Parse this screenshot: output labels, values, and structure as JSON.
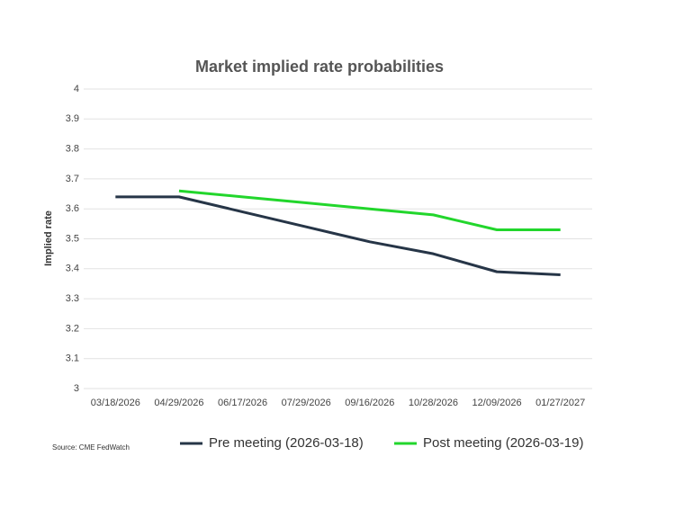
{
  "chart_data": {
    "type": "line",
    "title": "Market implied rate probabilities",
    "y_label": "Implied rate",
    "source": "Source: CME FedWatch",
    "categories": [
      "03/18/2026",
      "04/29/2026",
      "06/17/2026",
      "07/29/2026",
      "09/16/2026",
      "10/28/2026",
      "12/09/2026",
      "01/27/2027"
    ],
    "series": [
      {
        "name": "Pre meeting (2026-03-18)",
        "color": "#263547",
        "values": [
          3.64,
          3.64,
          3.59,
          3.54,
          3.49,
          3.45,
          3.39,
          3.38
        ]
      },
      {
        "name": "Post meeting (2026-03-19)",
        "color": "#22d62c",
        "values": [
          null,
          3.66,
          3.64,
          3.62,
          3.6,
          3.58,
          3.53,
          3.53
        ]
      }
    ],
    "ylim": [
      3,
      4
    ],
    "yticks": [
      3,
      3.1,
      3.2,
      3.3,
      3.4,
      3.5,
      3.6,
      3.7,
      3.8,
      3.9,
      4
    ],
    "grid": true
  }
}
